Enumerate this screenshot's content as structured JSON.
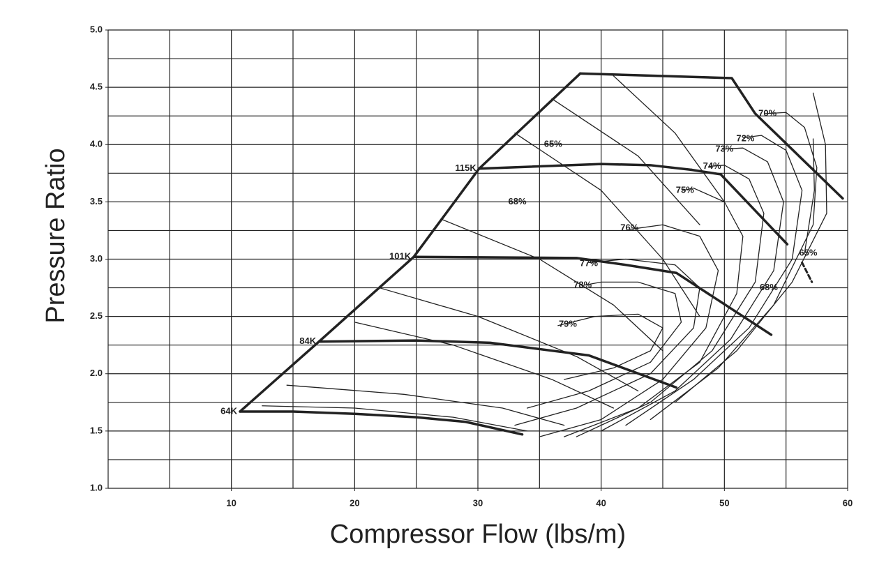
{
  "chart_data": {
    "type": "line",
    "xlabel": "Compressor Flow (lbs/m)",
    "ylabel": "Pressure Ratio",
    "xlim": [
      0,
      60
    ],
    "ylim": [
      1,
      5
    ],
    "xticks": [
      10,
      20,
      30,
      40,
      50,
      60
    ],
    "yticks": [
      {
        "value": 1,
        "label": "1.0"
      },
      {
        "value": 1.5,
        "label": "1.5"
      },
      {
        "value": 2,
        "label": "2.0"
      },
      {
        "value": 2.5,
        "label": "2.5"
      },
      {
        "value": 3,
        "label": "3.0"
      },
      {
        "value": 3.5,
        "label": "3.5"
      },
      {
        "value": 4,
        "label": "4.0"
      },
      {
        "value": 4.5,
        "label": "4.5"
      },
      {
        "value": 5,
        "label": "5.0"
      }
    ],
    "xgrid_step": 5,
    "ygrid_step": 0.25,
    "grid": true,
    "color": "#222222",
    "speed_lines": [
      {
        "name": "64K",
        "x": [
          10.7,
          15,
          20,
          25,
          29,
          33.6
        ],
        "y": [
          1.67,
          1.67,
          1.65,
          1.62,
          1.58,
          1.47
        ]
      },
      {
        "name": "84K",
        "x": [
          17.1,
          25,
          31,
          39,
          46.1
        ],
        "y": [
          2.28,
          2.29,
          2.27,
          2.16,
          1.88
        ]
      },
      {
        "name": "101K",
        "x": [
          24.8,
          38,
          42,
          46.1,
          53.8
        ],
        "y": [
          3.02,
          3.01,
          2.95,
          2.88,
          2.34
        ]
      },
      {
        "name": "115K",
        "x": [
          30.1,
          40,
          44,
          47.3
        ],
        "y": [
          3.79,
          3.83,
          3.82,
          3.78
        ]
      }
    ],
    "boundaries": [
      {
        "x": [
          10.7,
          17.1,
          24.8,
          30.1,
          38.3
        ],
        "y": [
          1.67,
          2.28,
          3.02,
          3.79,
          4.62
        ]
      },
      {
        "x": [
          38.3,
          50.6,
          52.5,
          59.6
        ],
        "y": [
          4.62,
          4.58,
          4.27,
          3.53
        ]
      },
      {
        "x": [
          47.3,
          49.7,
          55.1
        ],
        "y": [
          3.78,
          3.74,
          3.13
        ]
      }
    ],
    "dashed": [
      {
        "x": [
          56.3,
          57.1
        ],
        "y": [
          2.97,
          2.8
        ]
      }
    ],
    "contours": [
      {
        "x": [
          37,
          41,
          44,
          45,
          43,
          39.5,
          36.5
        ],
        "y": [
          1.95,
          2.05,
          2.2,
          2.4,
          2.52,
          2.5,
          2.42
        ]
      },
      {
        "x": [
          34,
          39,
          44,
          46.5,
          46,
          43,
          40,
          38.5
        ],
        "y": [
          1.7,
          1.85,
          2.1,
          2.45,
          2.7,
          2.8,
          2.8,
          2.77
        ]
      },
      {
        "x": [
          33,
          38,
          44,
          47.5,
          48,
          46,
          42,
          39
        ],
        "y": [
          1.55,
          1.7,
          2.0,
          2.4,
          2.75,
          2.95,
          3.0,
          2.97
        ]
      },
      {
        "x": [
          35,
          40,
          45,
          48.5,
          49.5,
          48,
          45,
          42.3
        ],
        "y": [
          1.45,
          1.6,
          1.95,
          2.4,
          2.9,
          3.2,
          3.3,
          3.26
        ]
      },
      {
        "x": [
          37,
          43,
          48,
          51,
          51.5,
          50,
          47.5,
          46.6
        ],
        "y": [
          1.45,
          1.7,
          2.1,
          2.7,
          3.2,
          3.5,
          3.62,
          3.6
        ]
      },
      {
        "x": [
          38,
          44,
          49,
          52.5,
          53.2,
          52,
          50,
          48.8
        ],
        "y": [
          1.45,
          1.75,
          2.2,
          2.8,
          3.4,
          3.7,
          3.82,
          3.81
        ]
      },
      {
        "x": [
          40,
          46,
          50.5,
          54,
          54.8,
          53.5,
          51.5,
          49.8
        ],
        "y": [
          1.5,
          1.85,
          2.3,
          2.9,
          3.5,
          3.85,
          3.97,
          3.96
        ]
      },
      {
        "x": [
          42,
          47.5,
          52,
          55.5,
          56.3,
          55,
          53,
          51.5
        ],
        "y": [
          1.55,
          1.95,
          2.4,
          3.0,
          3.6,
          3.95,
          4.08,
          4.06
        ]
      },
      {
        "x": [
          44,
          49.5,
          54,
          57.2,
          57.5,
          56.5,
          55,
          53.3
        ],
        "y": [
          1.6,
          2.05,
          2.6,
          3.3,
          3.8,
          4.15,
          4.28,
          4.27
        ]
      },
      {
        "x": [
          46,
          51,
          55.5,
          58.3,
          58.2,
          57.2
        ],
        "y": [
          1.75,
          2.2,
          2.8,
          3.4,
          4.0,
          4.45
        ]
      },
      {
        "x": [
          56.5,
          57.3,
          57.2
        ],
        "y": [
          3.05,
          3.6,
          4.05
        ]
      },
      {
        "x": [
          12.5,
          20,
          28,
          34
        ],
        "y": [
          1.72,
          1.7,
          1.62,
          1.5
        ]
      },
      {
        "x": [
          14.5,
          24,
          32,
          37
        ],
        "y": [
          1.9,
          1.82,
          1.7,
          1.55
        ]
      },
      {
        "x": [
          20,
          28,
          36,
          41
        ],
        "y": [
          2.45,
          2.25,
          1.95,
          1.7
        ]
      },
      {
        "x": [
          22,
          30,
          38,
          43
        ],
        "y": [
          2.75,
          2.5,
          2.15,
          1.85
        ]
      },
      {
        "x": [
          27,
          35,
          41,
          45
        ],
        "y": [
          3.35,
          3.0,
          2.6,
          2.2
        ]
      },
      {
        "x": [
          33,
          40,
          45,
          48
        ],
        "y": [
          4.1,
          3.6,
          3.0,
          2.5
        ]
      },
      {
        "x": [
          36,
          43,
          48
        ],
        "y": [
          4.4,
          3.9,
          3.3
        ]
      },
      {
        "x": [
          41,
          46,
          50
        ],
        "y": [
          4.6,
          4.1,
          3.5
        ]
      }
    ],
    "annotations": [
      {
        "text": "65%",
        "x": 36.1,
        "y": 4.0
      },
      {
        "text": "68%",
        "x": 33.2,
        "y": 3.5
      },
      {
        "text": "76%",
        "x": 42.3,
        "y": 3.27
      },
      {
        "text": "77%",
        "x": 39,
        "y": 2.96
      },
      {
        "text": "78%",
        "x": 38.5,
        "y": 2.77
      },
      {
        "text": "79%",
        "x": 37.3,
        "y": 2.43
      },
      {
        "text": "75%",
        "x": 46.8,
        "y": 3.6
      },
      {
        "text": "74%",
        "x": 49,
        "y": 3.81
      },
      {
        "text": "73%",
        "x": 50,
        "y": 3.96
      },
      {
        "text": "72%",
        "x": 51.7,
        "y": 4.05
      },
      {
        "text": "70%",
        "x": 53.5,
        "y": 4.27
      },
      {
        "text": "65%",
        "x": 56.8,
        "y": 3.05
      },
      {
        "text": "68%",
        "x": 53.6,
        "y": 2.75
      }
    ]
  }
}
